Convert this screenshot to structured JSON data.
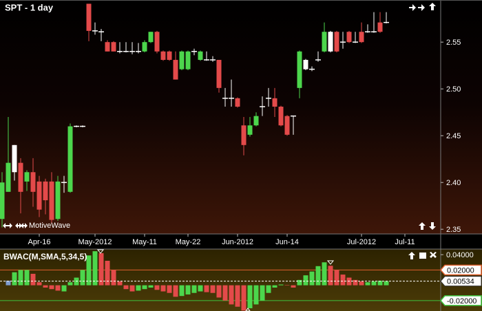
{
  "chart_data": [
    {
      "type": "candlestick",
      "title": "SPT - 1 day",
      "watermark": "MotiveWave",
      "categories": [
        null,
        null,
        null,
        null,
        null,
        null,
        "Apr-16",
        null,
        null,
        null,
        null,
        null,
        null,
        null,
        null,
        "May-2012",
        null,
        null,
        null,
        null,
        null,
        null,
        null,
        "May-11",
        null,
        null,
        null,
        null,
        null,
        null,
        "May-22",
        null,
        null,
        null,
        null,
        null,
        null,
        null,
        "Jun-2012",
        null,
        null,
        null,
        null,
        null,
        null,
        null,
        "Jun-14",
        null,
        null,
        null,
        null,
        null,
        null,
        null,
        null,
        null,
        null,
        null,
        "Jul-2012",
        null,
        null,
        null,
        null,
        null,
        null,
        "Jul-11",
        null,
        null,
        null,
        null,
        null
      ],
      "open": [
        2.361,
        2.39,
        2.411,
        2.421,
        2.401,
        2.411,
        2.401,
        2.401,
        2.401,
        2.361,
        2.4,
        2.39,
        2.46,
        2.46,
        2.591,
        2.562,
        2.561,
        2.55,
        2.55,
        2.54,
        2.54,
        2.54,
        2.54,
        2.54,
        2.55,
        2.561,
        2.54,
        2.54,
        2.531,
        2.521,
        2.521,
        2.54,
        2.531,
        2.531,
        2.531,
        2.531,
        2.49,
        2.49,
        2.49,
        2.461,
        2.451,
        2.461,
        2.481,
        2.49,
        2.49,
        2.481,
        2.471,
        2.471,
        2.501,
        2.521,
        2.521,
        2.531,
        2.54,
        2.54,
        2.561,
        2.55,
        2.561,
        2.55,
        2.561,
        2.561,
        2.561,
        2.571,
        2.571,
        null,
        null,
        null,
        null,
        null,
        null,
        null,
        null
      ],
      "high": [
        2.411,
        2.47,
        2.44,
        2.426,
        2.413,
        2.426,
        2.407,
        2.404,
        2.411,
        2.407,
        2.407,
        2.463,
        2.461,
        2.461,
        2.591,
        2.571,
        2.564,
        2.552,
        2.551,
        2.55,
        2.55,
        2.55,
        2.549,
        2.552,
        2.561,
        2.562,
        2.541,
        2.541,
        2.54,
        2.541,
        2.541,
        2.543,
        2.541,
        2.54,
        2.535,
        2.531,
        2.501,
        2.51,
        2.491,
        2.47,
        2.47,
        2.475,
        2.492,
        2.501,
        2.501,
        2.482,
        2.472,
        2.471,
        2.541,
        2.532,
        2.524,
        2.54,
        2.571,
        2.562,
        2.562,
        2.561,
        2.562,
        2.561,
        2.571,
        2.569,
        2.582,
        2.582,
        2.582,
        null,
        null,
        null,
        null,
        null,
        null,
        null,
        null
      ],
      "low": [
        2.352,
        2.39,
        2.402,
        2.367,
        2.391,
        2.374,
        2.363,
        2.366,
        2.356,
        2.359,
        2.389,
        2.389,
        2.459,
        2.459,
        2.551,
        2.558,
        2.551,
        2.54,
        2.54,
        2.538,
        2.539,
        2.537,
        2.538,
        2.539,
        2.549,
        2.538,
        2.53,
        2.53,
        2.51,
        2.52,
        2.52,
        2.536,
        2.53,
        2.53,
        2.529,
        2.496,
        2.481,
        2.481,
        2.48,
        2.429,
        2.449,
        2.46,
        2.471,
        2.481,
        2.47,
        2.46,
        2.45,
        2.451,
        2.49,
        2.52,
        2.519,
        2.529,
        2.539,
        2.539,
        2.539,
        2.543,
        2.549,
        2.549,
        2.549,
        2.56,
        2.56,
        2.56,
        2.57,
        null,
        null,
        null,
        null,
        null,
        null,
        null,
        null
      ],
      "close": [
        2.4,
        2.421,
        2.44,
        2.39,
        2.411,
        2.39,
        2.371,
        2.381,
        2.36,
        2.401,
        2.4,
        2.46,
        2.46,
        2.46,
        2.562,
        2.562,
        2.561,
        2.54,
        2.54,
        2.54,
        2.54,
        2.54,
        2.54,
        2.55,
        2.561,
        2.54,
        2.531,
        2.531,
        2.51,
        2.54,
        2.54,
        2.54,
        2.54,
        2.531,
        2.531,
        2.501,
        2.49,
        2.49,
        2.481,
        2.44,
        2.461,
        2.471,
        2.481,
        2.49,
        2.481,
        2.461,
        2.451,
        2.471,
        2.54,
        2.531,
        2.521,
        2.531,
        2.561,
        2.561,
        2.54,
        2.55,
        2.55,
        2.55,
        2.55,
        2.561,
        2.561,
        2.561,
        2.571,
        null,
        null,
        null,
        null,
        null,
        null,
        null,
        null
      ],
      "candle_colors": [
        "up",
        "up",
        "flat",
        "down",
        "up",
        "down",
        "down",
        "down",
        "down",
        "up",
        "flat",
        "up",
        "flat",
        "flat",
        "down",
        "flat",
        "flat",
        "down",
        "down",
        "flat",
        "flat",
        "flat",
        "flat",
        "up",
        "up",
        "down",
        "down",
        "down",
        "down",
        "up",
        "up",
        "flat",
        "up",
        "flat",
        "flat",
        "down",
        "flat",
        "flat",
        "down",
        "down",
        "up",
        "up",
        "flat",
        "flat",
        "down",
        "down",
        "down",
        "flat",
        "up",
        "flat",
        "flat",
        "flat",
        "up",
        "flat",
        "down",
        "flat",
        "down",
        "flat",
        "down",
        "flat",
        "flat",
        "down",
        "flat",
        null,
        null,
        null,
        null,
        null,
        null,
        null,
        null
      ],
      "palette": {
        "up": "#4cd64c",
        "down": "#e34a4a",
        "flat": "#ffffff"
      },
      "ylim": [
        2.345,
        2.595
      ],
      "yticks": [
        2.35,
        {
          "value": 2.4,
          "label": "2.40"
        },
        2.45,
        {
          "value": 2.5,
          "label": "2.50"
        },
        2.55
      ]
    },
    {
      "type": "bar",
      "title": "BWAC(M,SMA,5,34,5)",
      "values": [
        null,
        0.006,
        0.017,
        0.02,
        0.02,
        0.015,
        0.004,
        -0.003,
        -0.005,
        -0.007,
        -0.008,
        0.004,
        0.01,
        0.02,
        0.039,
        0.0445,
        0.042,
        0.032,
        0.02,
        0.005,
        -0.005,
        -0.008,
        -0.007,
        -0.005,
        -0.003,
        -0.006,
        -0.008,
        -0.01,
        -0.015,
        -0.014,
        -0.012,
        -0.01,
        -0.008,
        -0.009,
        -0.01,
        -0.016,
        -0.02,
        -0.025,
        -0.028,
        -0.033,
        -0.03,
        -0.025,
        -0.02,
        -0.01,
        -0.003,
        0.001,
        0.0005,
        -0.003,
        0.007,
        0.013,
        0.018,
        0.025,
        0.03,
        0.0255,
        0.02,
        0.014,
        0.01,
        0.007,
        0.005,
        0.004,
        0.005,
        0.006,
        0.00534,
        null,
        null,
        null,
        null,
        null,
        null,
        null,
        null
      ],
      "bar_colors": [
        null,
        "neutral",
        "up",
        "up",
        "up",
        "down",
        "down",
        "down",
        "down",
        "down",
        "up",
        "up",
        "up",
        "up",
        "up",
        "up",
        "down",
        "down",
        "down",
        "down",
        "down",
        "down",
        "up",
        "up",
        "up",
        "down",
        "down",
        "down",
        "down",
        "up",
        "up",
        "up",
        "up",
        "down",
        "down",
        "down",
        "down",
        "down",
        "down",
        "down",
        "up",
        "up",
        "up",
        "up",
        "up",
        "up",
        "down",
        "down",
        "up",
        "up",
        "up",
        "up",
        "up",
        "down",
        "down",
        "down",
        "down",
        "down",
        "down",
        "up",
        "up",
        "up",
        "up",
        null,
        null,
        null,
        null,
        null,
        null,
        null,
        null
      ],
      "palette": {
        "up": "#4cd64c",
        "down": "#e34a4a",
        "neutral": "#7f9ccc"
      },
      "ylim": [
        -0.0336,
        0.0473
      ],
      "yticks": [
        {
          "value": -0.02,
          "label": "-0.02000",
          "color": "#3ec43e"
        },
        {
          "value": 0.02,
          "label": "0.02000",
          "color": "#e0602e"
        },
        {
          "value": 0.04,
          "label": "0.04000"
        }
      ]
    }
  ]
}
